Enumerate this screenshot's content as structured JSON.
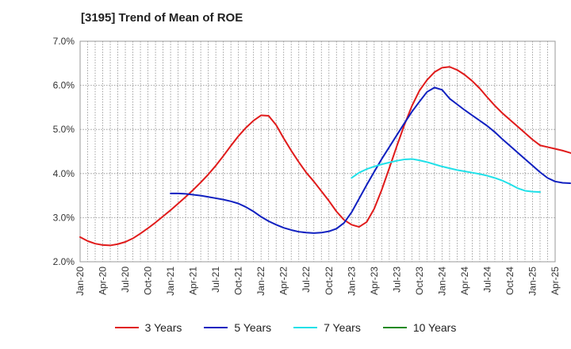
{
  "chart_data": {
    "type": "line",
    "title": "[3195]  Trend of Mean of ROE",
    "xlabel": "",
    "ylabel": "",
    "ylim": [
      2.0,
      7.0
    ],
    "yticks": [
      "2.0%",
      "3.0%",
      "4.0%",
      "5.0%",
      "6.0%",
      "7.0%"
    ],
    "xticks": [
      "Jan-20",
      "Apr-20",
      "Jul-20",
      "Oct-20",
      "Jan-21",
      "Apr-21",
      "Jul-21",
      "Oct-21",
      "Jan-22",
      "Apr-22",
      "Jul-22",
      "Oct-22",
      "Jan-23",
      "Apr-23",
      "Jul-23",
      "Oct-23",
      "Jan-24",
      "Apr-24",
      "Jul-24",
      "Oct-24",
      "Jan-25",
      "Apr-25"
    ],
    "grid": true,
    "legend_position": "bottom",
    "series": [
      {
        "name": "3 Years",
        "color": "#e01b1b",
        "start_month": 0,
        "values": [
          2.56,
          2.47,
          2.41,
          2.38,
          2.37,
          2.4,
          2.45,
          2.53,
          2.64,
          2.76,
          2.89,
          3.03,
          3.17,
          3.32,
          3.47,
          3.63,
          3.8,
          3.98,
          4.18,
          4.4,
          4.63,
          4.85,
          5.04,
          5.2,
          5.32,
          5.31,
          5.1,
          4.8,
          4.52,
          4.26,
          4.02,
          3.82,
          3.6,
          3.38,
          3.14,
          2.95,
          2.84,
          2.79,
          2.9,
          3.2,
          3.63,
          4.12,
          4.62,
          5.1,
          5.53,
          5.88,
          6.12,
          6.3,
          6.4,
          6.42,
          6.35,
          6.24,
          6.1,
          5.93,
          5.73,
          5.54,
          5.37,
          5.22,
          5.07,
          4.92,
          4.77,
          4.64,
          4.6,
          4.56,
          4.52,
          4.47,
          4.41,
          4.36,
          4.31,
          4.27
        ]
      },
      {
        "name": "5 Years",
        "color": "#1020c0",
        "start_month": 12,
        "values": [
          3.55,
          3.55,
          3.54,
          3.52,
          3.5,
          3.47,
          3.44,
          3.41,
          3.37,
          3.32,
          3.24,
          3.14,
          3.02,
          2.92,
          2.84,
          2.77,
          2.72,
          2.68,
          2.66,
          2.65,
          2.66,
          2.69,
          2.75,
          2.88,
          3.12,
          3.43,
          3.74,
          4.04,
          4.33,
          4.6,
          4.87,
          5.14,
          5.4,
          5.63,
          5.85,
          5.95,
          5.9,
          5.7,
          5.57,
          5.44,
          5.32,
          5.2,
          5.08,
          4.94,
          4.78,
          4.63,
          4.48,
          4.33,
          4.18,
          4.03,
          3.9,
          3.82,
          3.79,
          3.78
        ]
      },
      {
        "name": "7 Years",
        "color": "#20e0e8",
        "start_month": 36,
        "values": [
          3.9,
          4.02,
          4.1,
          4.16,
          4.21,
          4.25,
          4.29,
          4.32,
          4.33,
          4.3,
          4.26,
          4.21,
          4.16,
          4.12,
          4.08,
          4.05,
          4.02,
          3.99,
          3.95,
          3.9,
          3.84,
          3.76,
          3.67,
          3.61,
          3.59,
          3.58
        ]
      },
      {
        "name": "10 Years",
        "color": "#1e8a1e",
        "start_month": 0,
        "values": []
      }
    ]
  }
}
